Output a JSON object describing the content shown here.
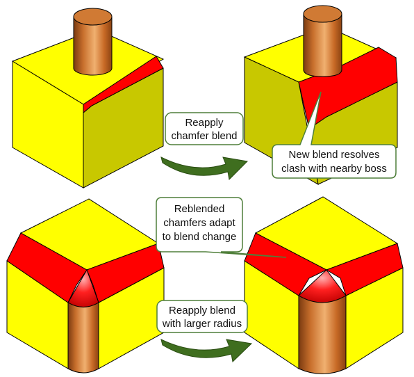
{
  "colors": {
    "face_yellow": "#ffff00",
    "face_olive": "#c8c800",
    "face_olive_dark": "#b4b400",
    "blend_red": "#ff0000",
    "boss_copper": "#c8702a",
    "arrow_green": "#3f6e1f",
    "callout_border": "#4f7f3a"
  },
  "icons": [
    "curved-arrow-icon",
    "curved-arrow-icon"
  ],
  "callouts": {
    "reapply_chamfer": {
      "line1": "Reapply",
      "line2": "chamfer blend"
    },
    "new_blend": {
      "line1": "New blend resolves",
      "line2": "clash with nearby boss"
    },
    "reblended": {
      "line1": "Reblended",
      "line2": "chamfers adapt",
      "line3": "to blend change"
    },
    "reapply_larger": {
      "line1": "Reapply blend",
      "line2": "with larger radius"
    }
  }
}
